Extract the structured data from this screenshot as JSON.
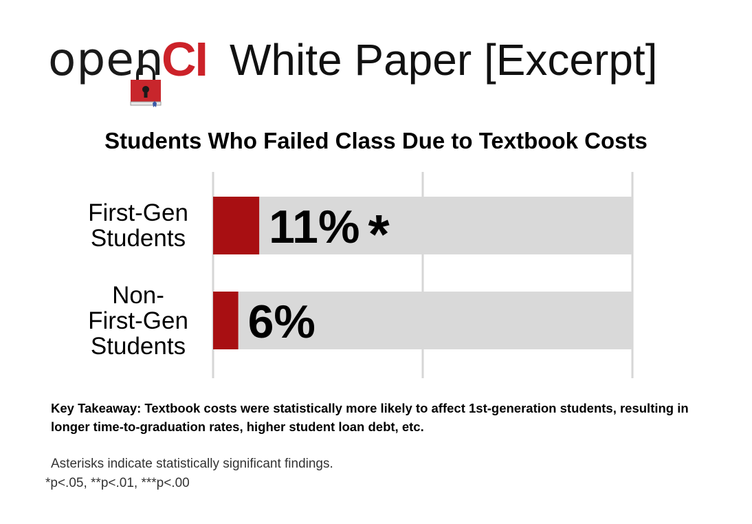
{
  "header": {
    "logo_word_1": "open",
    "logo_word_2": "CI",
    "title": "White Paper [Excerpt]",
    "logo_color": "#cc2229"
  },
  "chart_data": {
    "type": "bar",
    "orientation": "horizontal",
    "title": "Students Who Failed Class Due to Textbook Costs",
    "categories": [
      "First-Gen\nStudents",
      "Non-\nFirst-Gen\nStudents"
    ],
    "values": [
      11,
      6
    ],
    "value_labels": [
      "11%",
      "6%"
    ],
    "significance": [
      "*",
      ""
    ],
    "xlim": [
      0,
      100
    ],
    "grid": true,
    "bar_color": "#a80f12",
    "track_color": "#d9d9d9"
  },
  "notes": {
    "takeaway": "Key Takeaway: Textbook costs were statistically more likely to affect 1st-generation students, resulting in longer time-to-graduation rates, higher student loan debt, etc.",
    "asterisk_note": "Asterisks indicate statistically significant findings.",
    "pvalues": "*p<.05, **p<.01, ***p<.00"
  }
}
